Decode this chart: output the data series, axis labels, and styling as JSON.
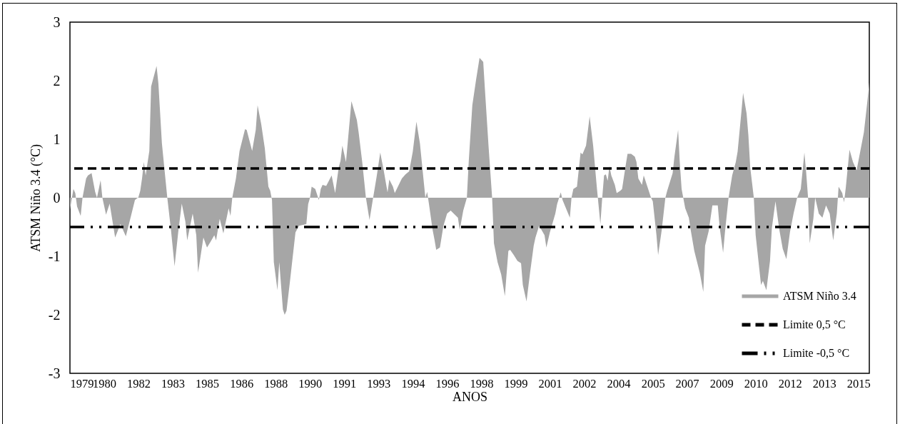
{
  "chart_data": {
    "type": "area",
    "xlabel": "ANOS",
    "ylabel": "ATSM  Niño 3.4 (°C)",
    "x": [
      "1979-01",
      "1979-03",
      "1979-04",
      "1979-05",
      "1979-07",
      "1979-08",
      "1979-10",
      "1979-11",
      "1980-01",
      "1980-03",
      "1980-04",
      "1980-06",
      "1980-07",
      "1980-09",
      "1980-11",
      "1981-02",
      "1981-05",
      "1981-08",
      "1981-11",
      "1982-01",
      "1982-03",
      "1982-04",
      "1982-05",
      "1982-06",
      "1982-07",
      "1982-09",
      "1982-10",
      "1983-01",
      "1983-02",
      "1983-04",
      "1983-07",
      "1983-09",
      "1983-11",
      "1984-01",
      "1984-03",
      "1984-05",
      "1984-06",
      "1984-09",
      "1984-11",
      "1984-12",
      "1985-03",
      "1985-05",
      "1985-07",
      "1985-09",
      "1985-10",
      "1985-12",
      "1986-02",
      "1986-05",
      "1986-06",
      "1986-07",
      "1986-09",
      "1986-11",
      "1987-02",
      "1987-03",
      "1987-06",
      "1987-08",
      "1987-09",
      "1987-11",
      "1988-01",
      "1988-03",
      "1988-04",
      "1988-05",
      "1988-06",
      "1988-08",
      "1988-09",
      "1988-11",
      "1988-12",
      "1989-01",
      "1989-03",
      "1989-06",
      "1989-08",
      "1989-12",
      "1990-01",
      "1990-02",
      "1990-03",
      "1990-05",
      "1990-07",
      "1990-08",
      "1990-09",
      "1990-11",
      "1991-02",
      "1991-04",
      "1991-06",
      "1991-07",
      "1991-08",
      "1991-10",
      "1992-01",
      "1992-04",
      "1992-05",
      "1992-07",
      "1992-09",
      "1992-11",
      "1993-01",
      "1993-03",
      "1993-05",
      "1993-07",
      "1993-09",
      "1993-10",
      "1993-12",
      "1994-01",
      "1994-05",
      "1994-07",
      "1994-09",
      "1994-11",
      "1995-01",
      "1995-03",
      "1995-05",
      "1995-06",
      "1995-07",
      "1995-08",
      "1995-10",
      "1995-11",
      "1995-12",
      "1996-02",
      "1996-04",
      "1996-06",
      "1996-08",
      "1996-12",
      "1997-01",
      "1997-03",
      "1997-05",
      "1997-06",
      "1997-08",
      "1997-10",
      "1997-12",
      "1998-02",
      "1998-03",
      "1998-05",
      "1998-07",
      "1998-08",
      "1998-10",
      "1998-12",
      "1999-02",
      "1999-04",
      "1999-05",
      "1999-07",
      "1999-09",
      "1999-11",
      "1999-12",
      "2000-02",
      "2000-04",
      "2000-06",
      "2000-07",
      "2000-09",
      "2000-12",
      "2001-01",
      "2001-03",
      "2001-06",
      "2001-07",
      "2001-09",
      "2001-10",
      "2002-02",
      "2002-03",
      "2002-04",
      "2002-06",
      "2002-08",
      "2002-09",
      "2002-11",
      "2003-01",
      "2003-03",
      "2003-05",
      "2003-07",
      "2003-08",
      "2003-09",
      "2003-10",
      "2003-11",
      "2003-12",
      "2004-01",
      "2004-03",
      "2004-04",
      "2004-06",
      "2004-07",
      "2004-09",
      "2004-10",
      "2004-12",
      "2005-02",
      "2005-03",
      "2005-04",
      "2005-06",
      "2005-07",
      "2005-09",
      "2005-11",
      "2005-12",
      "2006-02",
      "2006-03",
      "2006-05",
      "2006-07",
      "2006-08",
      "2006-11",
      "2006-12",
      "2007-02",
      "2007-03",
      "2007-04",
      "2007-06",
      "2007-08",
      "2007-09",
      "2007-11",
      "2008-02",
      "2008-04",
      "2008-05",
      "2008-07",
      "2008-09",
      "2008-12",
      "2009-01",
      "2009-03",
      "2009-04",
      "2009-06",
      "2009-08",
      "2009-10",
      "2009-11",
      "2010-01",
      "2010-02",
      "2010-04",
      "2010-05",
      "2010-06",
      "2010-08",
      "2010-09",
      "2010-12",
      "2011-01",
      "2011-03",
      "2011-05",
      "2011-06",
      "2011-08",
      "2011-10",
      "2011-12",
      "2012-02",
      "2012-04",
      "2012-06",
      "2012-08",
      "2012-10",
      "2012-12",
      "2013-01",
      "2013-02",
      "2013-03",
      "2013-05",
      "2013-06",
      "2013-08",
      "2013-10",
      "2013-12",
      "2014-02",
      "2014-04",
      "2014-06",
      "2014-07",
      "2014-09",
      "2014-10",
      "2014-11",
      "2015-01",
      "2015-03",
      "2015-05",
      "2015-07",
      "2015-09",
      "2015-11",
      "2015-12"
    ],
    "series": [
      {
        "name": "ATSM Niño 3.4",
        "color": "#a6a6a6",
        "values": [
          -0.2,
          0.15,
          0.08,
          -0.15,
          -0.31,
          0,
          0.33,
          0.38,
          0.42,
          0.1,
          0,
          0.3,
          0,
          -0.29,
          -0.1,
          -0.68,
          -0.45,
          -0.66,
          -0.29,
          -0.04,
          0.01,
          0.12,
          0.33,
          0.61,
          0.38,
          0.8,
          1.9,
          2.25,
          1.95,
          0.93,
          0,
          -0.55,
          -1.17,
          -0.59,
          -0.1,
          -0.41,
          -0.73,
          -0.27,
          -0.64,
          -1.28,
          -0.68,
          -0.85,
          -0.75,
          -0.64,
          -0.73,
          -0.36,
          -0.61,
          -0.18,
          -0.31,
          0,
          0.33,
          0.8,
          1.17,
          1.16,
          0.8,
          1.16,
          1.58,
          1.26,
          0.84,
          0.19,
          0.12,
          -0.04,
          -1.1,
          -1.58,
          -1.1,
          -1.91,
          -2.0,
          -1.93,
          -1.42,
          -0.59,
          -0.48,
          -0.45,
          -0.11,
          0,
          0.19,
          0.15,
          -0.04,
          0.15,
          0.22,
          0.2,
          0.38,
          0.08,
          0.52,
          0.63,
          0.89,
          0.61,
          1.65,
          1.33,
          1.12,
          0.61,
          0,
          -0.38,
          0,
          0.36,
          0.77,
          0.45,
          0.09,
          0.31,
          0.19,
          0.08,
          0.33,
          0.4,
          0.45,
          0.79,
          1.3,
          0.93,
          0.31,
          0,
          0.1,
          -0.11,
          -0.55,
          -0.71,
          -0.89,
          -0.85,
          -0.48,
          -0.27,
          -0.22,
          -0.34,
          -0.55,
          -0.22,
          0,
          0.61,
          1.58,
          2.0,
          2.39,
          2.32,
          1.86,
          0.89,
          0,
          -0.78,
          -1.1,
          -1.31,
          -1.68,
          -0.91,
          -0.89,
          -0.98,
          -1.08,
          -1.12,
          -1.49,
          -1.77,
          -1.28,
          -0.82,
          -0.68,
          -0.48,
          -0.64,
          -0.85,
          -0.59,
          -0.27,
          -0.11,
          0.09,
          -0.04,
          -0.34,
          0,
          0.15,
          0.19,
          0.77,
          0.74,
          0.89,
          1.39,
          0.89,
          0.19,
          -0.45,
          0,
          0.38,
          0.4,
          0.29,
          0.54,
          0.38,
          0.22,
          0.08,
          0.12,
          0.15,
          0.56,
          0.75,
          0.75,
          0.7,
          0.61,
          0.33,
          0.22,
          0.38,
          0.19,
          0,
          -0.06,
          -0.64,
          -0.98,
          -0.55,
          0,
          0.12,
          0.42,
          0.7,
          1.16,
          0.61,
          0.15,
          -0.18,
          -0.34,
          -0.55,
          -0.91,
          -1.28,
          -1.61,
          -0.82,
          -0.57,
          -0.13,
          -0.13,
          -0.5,
          -0.94,
          -0.59,
          0,
          0.38,
          0.61,
          0.79,
          1.44,
          1.79,
          1.44,
          1.07,
          0.52,
          0,
          -0.64,
          -1.49,
          -1.42,
          -1.58,
          -1.08,
          -0.52,
          -0.06,
          -0.52,
          -0.87,
          -1.05,
          -0.59,
          -0.27,
          0,
          0.15,
          0.77,
          0.42,
          0,
          -0.78,
          -0.36,
          0,
          -0.27,
          -0.34,
          -0.13,
          -0.27,
          -0.73,
          -0.27,
          0.19,
          0.08,
          -0.08,
          0.19,
          0.82,
          0.61,
          0.47,
          0.79,
          1.12,
          1.67,
          1.97
        ]
      }
    ],
    "xlim": [
      "1979-01",
      "2015-12"
    ],
    "xticks": [
      {
        "value": "1979-01",
        "label": "1979"
      },
      {
        "value": "1980-08",
        "label": "1980"
      },
      {
        "value": "1982-03",
        "label": "1982"
      },
      {
        "value": "1983-10",
        "label": "1983"
      },
      {
        "value": "1985-05",
        "label": "1985"
      },
      {
        "value": "1986-12",
        "label": "1986"
      },
      {
        "value": "1988-07",
        "label": "1988"
      },
      {
        "value": "1990-02",
        "label": "1990"
      },
      {
        "value": "1991-09",
        "label": "1991"
      },
      {
        "value": "1993-04",
        "label": "1993"
      },
      {
        "value": "1994-11",
        "label": "1994"
      },
      {
        "value": "1996-06",
        "label": "1996"
      },
      {
        "value": "1998-01",
        "label": "1998"
      },
      {
        "value": "1999-08",
        "label": "1999"
      },
      {
        "value": "2001-03",
        "label": "2001"
      },
      {
        "value": "2002-10",
        "label": "2002"
      },
      {
        "value": "2004-05",
        "label": "2004"
      },
      {
        "value": "2005-12",
        "label": "2005"
      },
      {
        "value": "2007-07",
        "label": "2007"
      },
      {
        "value": "2009-02",
        "label": "2009"
      },
      {
        "value": "2010-09",
        "label": "2010"
      },
      {
        "value": "2012-04",
        "label": "2012"
      },
      {
        "value": "2013-11",
        "label": "2013"
      },
      {
        "value": "2015-06",
        "label": "2015"
      }
    ],
    "ylim": [
      -3,
      3
    ],
    "yticks": [
      -3,
      -2,
      -1,
      0,
      1,
      2,
      3
    ],
    "ref_lines": [
      {
        "axis": "y",
        "value": 0.5,
        "label": "Limite 0,5 °C",
        "color": "#000000",
        "line_style": "dashed"
      },
      {
        "axis": "y",
        "value": -0.5,
        "label": "Limite -0,5 °C",
        "color": "#000000",
        "line_style": "dashdot"
      }
    ],
    "legend": "bottom right"
  }
}
